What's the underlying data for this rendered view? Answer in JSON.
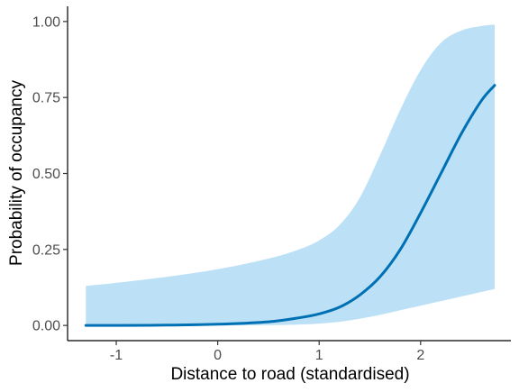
{
  "chart_data": {
    "type": "line",
    "xlabel": "Distance to road (standardised)",
    "ylabel": "Probability of occupancy",
    "xlim": [
      -1.48,
      2.89
    ],
    "ylim": [
      -0.05,
      1.05
    ],
    "x_ticks": [
      -1,
      0,
      1,
      2
    ],
    "x_tick_labels": [
      "-1",
      "0",
      "1",
      "2"
    ],
    "y_ticks": [
      0,
      0.25,
      0.5,
      0.75,
      1.0
    ],
    "y_tick_labels": [
      "0.00",
      "0.25",
      "0.50",
      "0.75",
      "1.00"
    ],
    "grid": false,
    "legend": "none",
    "series": [
      {
        "x": [
          -1.3,
          -1.0,
          -0.5,
          0.0,
          0.5,
          0.8,
          1.0,
          1.2,
          1.4,
          1.6,
          1.8,
          2.0,
          2.2,
          2.4,
          2.6,
          2.73
        ],
        "y": [
          0.0,
          0.0,
          0.001,
          0.004,
          0.012,
          0.025,
          0.038,
          0.06,
          0.1,
          0.16,
          0.25,
          0.37,
          0.5,
          0.63,
          0.74,
          0.79
        ],
        "lower": [
          0.0,
          0.0,
          0.0,
          0.0,
          0.001,
          0.003,
          0.006,
          0.012,
          0.022,
          0.035,
          0.05,
          0.065,
          0.08,
          0.095,
          0.11,
          0.12
        ],
        "upper": [
          0.13,
          0.14,
          0.16,
          0.185,
          0.22,
          0.25,
          0.28,
          0.33,
          0.42,
          0.56,
          0.71,
          0.84,
          0.93,
          0.97,
          0.985,
          0.99
        ]
      }
    ],
    "colors": {
      "line": "#0070b5",
      "ribbon": "#bce0f5",
      "axis": "#000000",
      "tick_text": "#4d4d4d"
    }
  }
}
